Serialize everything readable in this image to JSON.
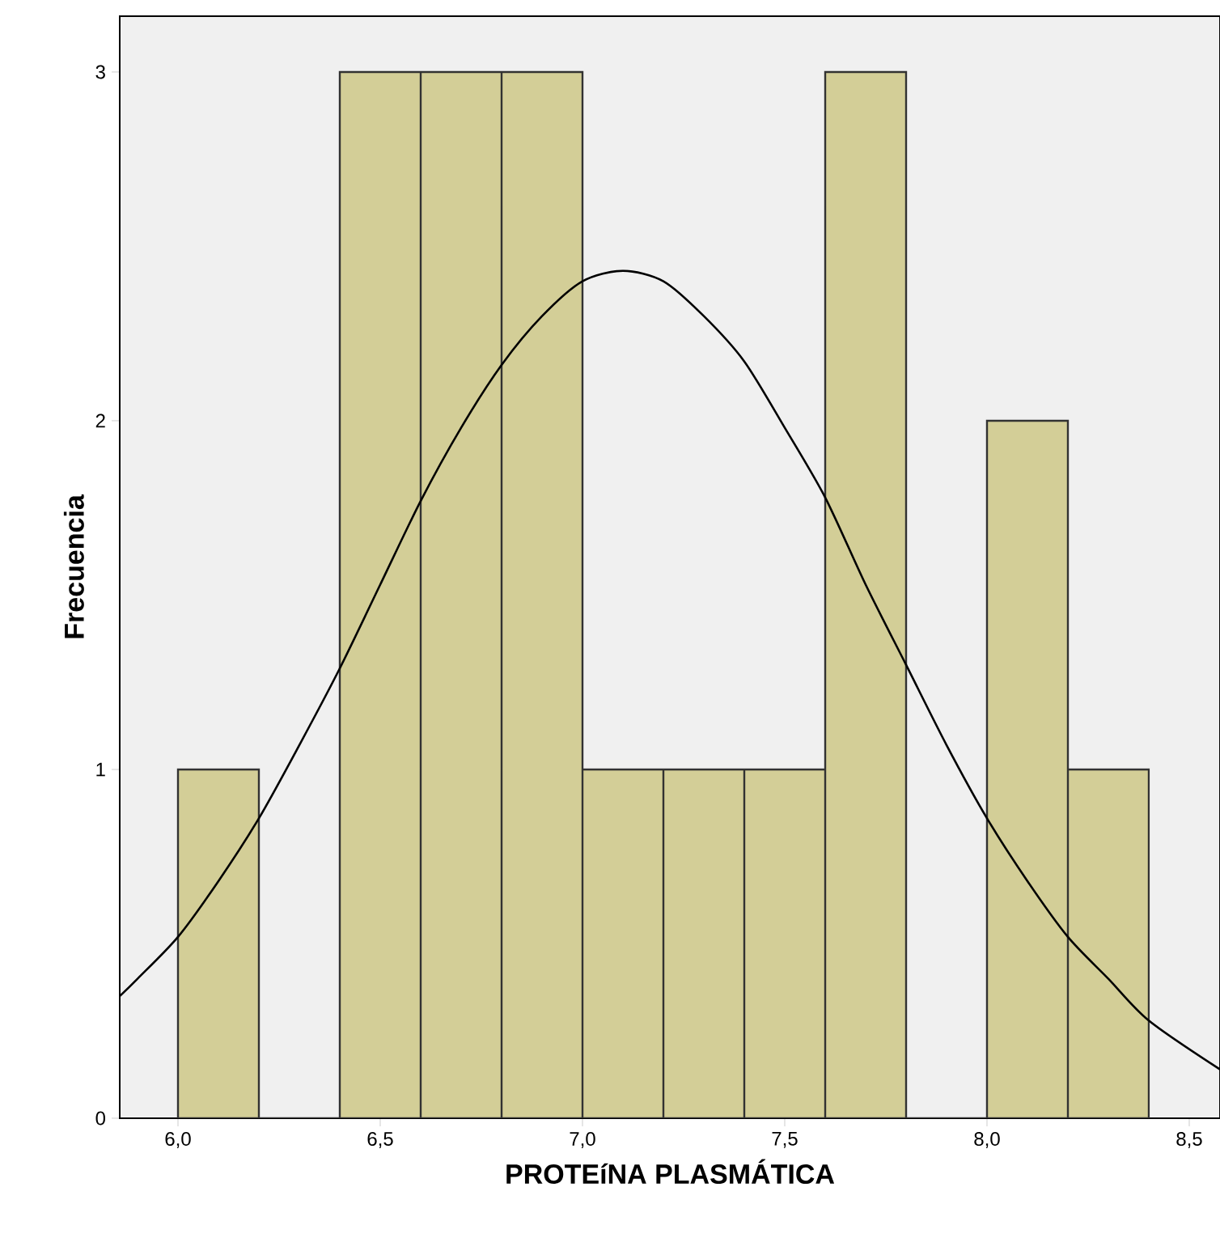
{
  "chart_data": {
    "type": "histogram",
    "xlabel": "PROTEíNA PLASMÁTICA",
    "ylabel": "Frecuencia",
    "bins": [
      6.0,
      6.2,
      6.4,
      6.6,
      6.8,
      7.0,
      7.2,
      7.4,
      7.6,
      7.8,
      8.0,
      8.2,
      8.4
    ],
    "values": [
      1,
      0,
      3,
      3,
      3,
      1,
      1,
      1,
      3,
      0,
      2,
      1
    ],
    "color": "#d3ce97",
    "series": [
      {
        "type": "line",
        "color": "#000000",
        "x": [
          5.856,
          5.9,
          6.0,
          6.1,
          6.2,
          6.3,
          6.4,
          6.5,
          6.6,
          6.7,
          6.8,
          6.9,
          7.0,
          7.1,
          7.2,
          7.3,
          7.4,
          7.5,
          7.6,
          7.7,
          7.8,
          7.9,
          8.0,
          8.1,
          8.2,
          8.3,
          8.4,
          8.576
        ],
        "values": [
          0.35,
          0.4,
          0.52,
          0.68,
          0.86,
          1.07,
          1.29,
          1.53,
          1.77,
          1.98,
          2.16,
          2.3,
          2.4,
          2.43,
          2.4,
          2.3,
          2.17,
          1.98,
          1.78,
          1.53,
          1.3,
          1.07,
          0.86,
          0.68,
          0.52,
          0.4,
          0.28,
          0.14
        ]
      }
    ],
    "xlim": [
      5.856,
      8.576
    ],
    "ylim": [
      0,
      3.16
    ],
    "xticks": [
      {
        "value": 6.0,
        "label": "6,0"
      },
      {
        "value": 6.5,
        "label": "6,5"
      },
      {
        "value": 7.0,
        "label": "7,0"
      },
      {
        "value": 7.5,
        "label": "7,5"
      },
      {
        "value": 8.0,
        "label": "8,0"
      },
      {
        "value": 8.5,
        "label": "8,5"
      }
    ],
    "yticks": [
      0,
      1,
      2,
      3
    ]
  }
}
